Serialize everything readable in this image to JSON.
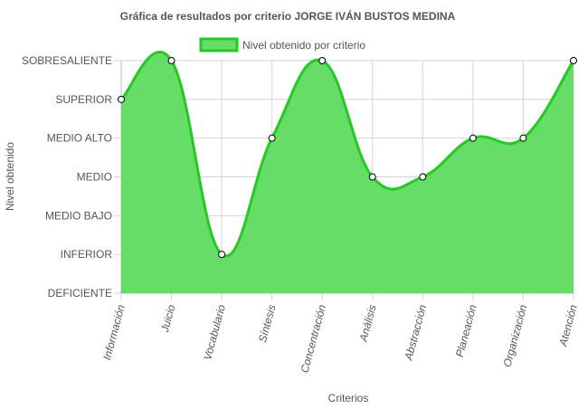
{
  "chart_data": {
    "type": "area",
    "title": "Gráfica de resultados por criterio  JORGE IVÁN BUSTOS MEDINA",
    "xlabel": "Criterios",
    "ylabel": "Nivel obtenido",
    "y_levels": [
      "DEFICIENTE",
      "INFERIOR",
      "MEDIO BAJO",
      "MEDIO",
      "MEDIO ALTO",
      "SUPERIOR",
      "SOBRESALIENTE"
    ],
    "categories": [
      "Información",
      "Juicio",
      "Vocabulario",
      "Síntesis",
      "Concentración",
      "Análisis",
      "Abstracción",
      "Planeación",
      "Organización",
      "Atención"
    ],
    "series": [
      {
        "name": "Nivel obtenido por criterio",
        "values": [
          5,
          6,
          1,
          4,
          6,
          3,
          3,
          4,
          4,
          6
        ],
        "color": "#26c826",
        "fill": "#66dd66"
      }
    ],
    "ylim": [
      0,
      6
    ],
    "grid": true,
    "legend": "top"
  }
}
